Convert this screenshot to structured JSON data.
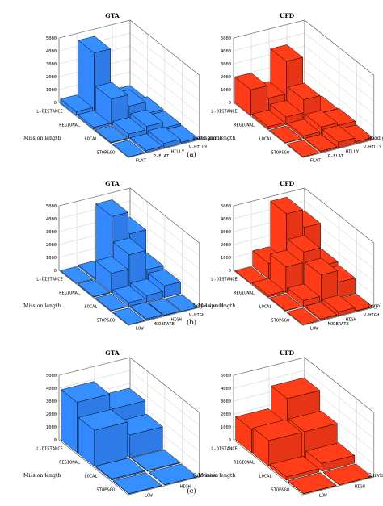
{
  "captions": [
    "(a)",
    "(b)",
    "(c)"
  ],
  "colors": {
    "gta": "#3388ff",
    "ufd": "#ff3b18",
    "edge": "#000000"
  },
  "chart_data": [
    {
      "type": "bar3d",
      "title": "GTA",
      "zlim": [
        0,
        5000
      ],
      "zticks": [
        "0",
        "1000",
        "2000",
        "3000",
        "4000",
        "5000"
      ],
      "xlabel": "Mission length",
      "ylabel": "Road grade",
      "x_categories": [
        "L-DISTANCE",
        "REGIONAL",
        "LOCAL",
        "STOP&GO"
      ],
      "y_categories": [
        "FLAT",
        "P-FLAT",
        "HILLY",
        "V-HILLY"
      ],
      "values": [
        [
          300,
          4500,
          250,
          0
        ],
        [
          150,
          2000,
          1100,
          200
        ],
        [
          50,
          350,
          600,
          150
        ],
        [
          0,
          150,
          350,
          100
        ]
      ]
    },
    {
      "type": "bar3d",
      "title": "UFD",
      "zlim": [
        0,
        5000
      ],
      "zticks": [
        "0",
        "1000",
        "2000",
        "3000",
        "4000",
        "5000"
      ],
      "xlabel": "Mission length",
      "ylabel": "Road grade",
      "x_categories": [
        "L-DISTANCE",
        "REGIONAL",
        "LOCAL",
        "STOP&GO"
      ],
      "y_categories": [
        "FLAT",
        "P-FLAT",
        "HILLY",
        "V-HILLY"
      ],
      "values": [
        [
          2000,
          1000,
          3500,
          50
        ],
        [
          200,
          600,
          1600,
          250
        ],
        [
          20,
          200,
          550,
          350
        ],
        [
          0,
          100,
          450,
          150
        ]
      ]
    },
    {
      "type": "bar3d",
      "title": "GTA",
      "zlim": [
        0,
        5000
      ],
      "zticks": [
        "0",
        "1000",
        "2000",
        "3000",
        "4000",
        "5000"
      ],
      "xlabel": "Mission length",
      "ylabel": "Legal speed",
      "x_categories": [
        "L-DISTANCE",
        "REGIONAL",
        "LOCAL",
        "STOP&GO"
      ],
      "y_categories": [
        "LOW",
        "MODERATE",
        "HIGH",
        "V-HIGH"
      ],
      "values": [
        [
          0,
          100,
          4500,
          2800
        ],
        [
          50,
          1500,
          2600,
          1100
        ],
        [
          20,
          300,
          500,
          900
        ],
        [
          0,
          100,
          50,
          0
        ]
      ]
    },
    {
      "type": "bar3d",
      "title": "UFD",
      "zlim": [
        0,
        5000
      ],
      "zticks": [
        "0",
        "1000",
        "2000",
        "3000",
        "4000",
        "5000"
      ],
      "xlabel": "Mission length",
      "ylabel": "Legal speed",
      "x_categories": [
        "L-DISTANCE",
        "REGIONAL",
        "LOCAL",
        "STOP&GO"
      ],
      "y_categories": [
        "LOW",
        "MODERATE",
        "HIGH",
        "V-HIGH"
      ],
      "values": [
        [
          0,
          1200,
          4700,
          3300
        ],
        [
          150,
          2000,
          2800,
          1400
        ],
        [
          30,
          450,
          2100,
          1200
        ],
        [
          0,
          100,
          300,
          50
        ]
      ]
    },
    {
      "type": "bar3d",
      "title": "GTA",
      "zlim": [
        0,
        5000
      ],
      "zticks": [
        "0",
        "1000",
        "2000",
        "3000",
        "4000",
        "5000"
      ],
      "xlabel": "Mission length",
      "ylabel": "Curviness",
      "x_categories": [
        "L-DISTANCE",
        "REGIONAL",
        "LOCAL",
        "STOP&GO"
      ],
      "y_categories": [
        "LOW",
        "HIGH"
      ],
      "values": [
        [
          3900,
          2700
        ],
        [
          2800,
          1750
        ],
        [
          100,
          60
        ],
        [
          30,
          20
        ]
      ]
    },
    {
      "type": "bar3d",
      "title": "UFD",
      "zlim": [
        0,
        5000
      ],
      "zticks": [
        "0",
        "1000",
        "2000",
        "3000",
        "4000",
        "5000"
      ],
      "xlabel": "Mission length",
      "ylabel": "Curviness",
      "x_categories": [
        "L-DISTANCE",
        "REGIONAL",
        "LOCAL",
        "STOP&GO"
      ],
      "y_categories": [
        "LOW",
        "HIGH"
      ],
      "values": [
        [
          1800,
          3500
        ],
        [
          2000,
          2000
        ],
        [
          250,
          600
        ],
        [
          30,
          20
        ]
      ]
    }
  ]
}
